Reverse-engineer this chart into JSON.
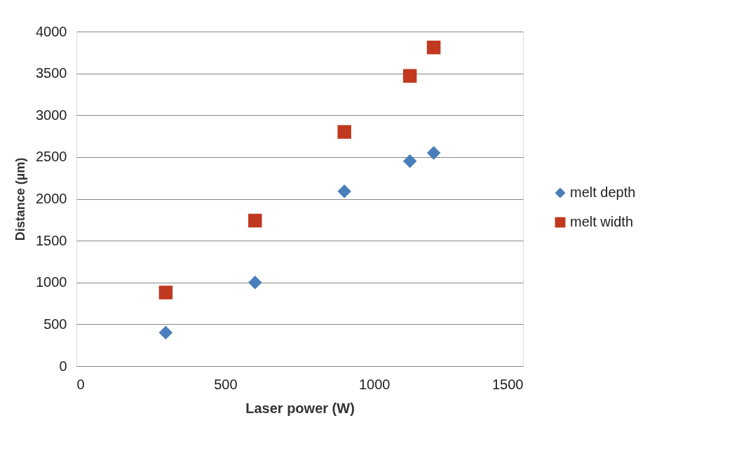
{
  "chart_data": {
    "type": "scatter",
    "xlabel": "Laser power (W)",
    "ylabel": "Distance (µm)",
    "xlim": [
      0,
      1500
    ],
    "xticks": [
      0,
      500,
      1000,
      1500
    ],
    "ylim": [
      0,
      4000
    ],
    "yticks": [
      0,
      500,
      1000,
      1500,
      2000,
      2500,
      3000,
      3500,
      4000
    ],
    "grid": "y",
    "legend": "right",
    "x": [
      300,
      600,
      900,
      1120,
      1200
    ],
    "series": [
      {
        "name": "melt depth",
        "color": "#4a7ebb",
        "marker": "diamond",
        "values": [
          400,
          1000,
          2090,
          2450,
          2550
        ]
      },
      {
        "name": "melt width",
        "color": "#c0391f",
        "marker": "square",
        "values": [
          880,
          1740,
          2800,
          3470,
          3810
        ]
      }
    ]
  }
}
